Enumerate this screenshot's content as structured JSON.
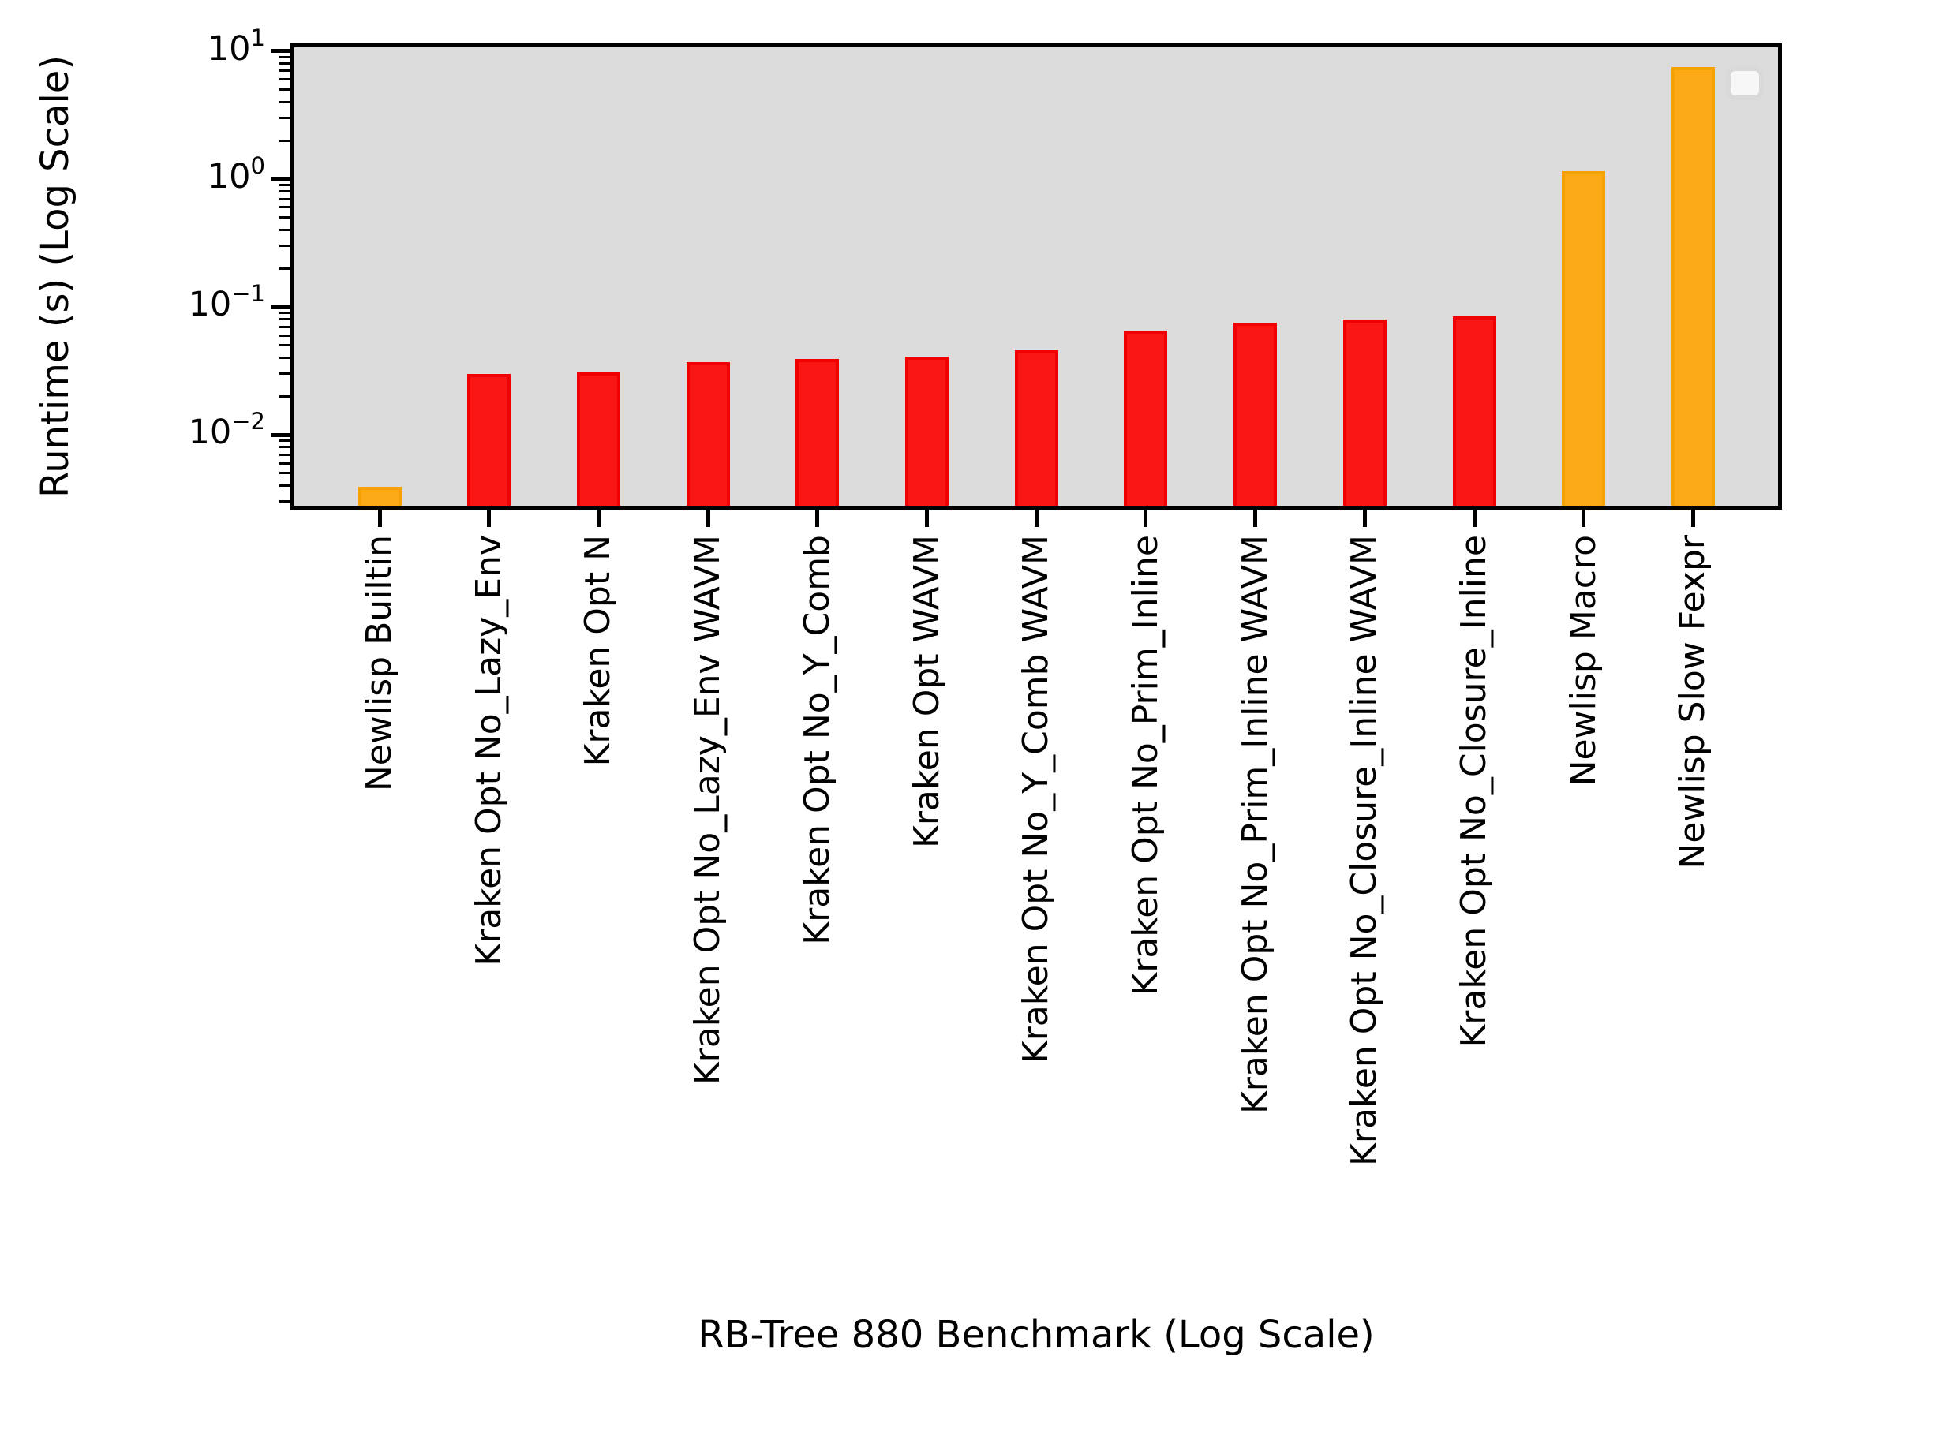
{
  "figure": {
    "y_axis": {
      "label": "Runtime (s) (Log Scale)",
      "major_ticks": [
        {
          "value": 10,
          "base": "10",
          "exp": "1"
        },
        {
          "value": 1,
          "base": "10",
          "exp": "0"
        },
        {
          "value": 0.1,
          "base": "10",
          "exp": "−1"
        },
        {
          "value": 0.01,
          "base": "10",
          "exp": "−2"
        }
      ]
    },
    "x_axis": {
      "label": "RB-Tree 880 Benchmark (Log Scale)"
    },
    "legend": {
      "present": true,
      "entries": []
    }
  },
  "chart_data": {
    "type": "bar",
    "title": "",
    "xlabel": "RB-Tree 880 Benchmark (Log Scale)",
    "ylabel": "Runtime (s) (Log Scale)",
    "yscale": "log",
    "ylim": [
      0.0026,
      11.5
    ],
    "grid": false,
    "legend_position": "upper right (empty box)",
    "categories": [
      "Newlisp Builtin",
      "Kraken Opt No_Lazy_Env",
      "Kraken Opt N",
      "Kraken Opt No_Lazy_Env WAVM",
      "Kraken Opt No_Y_Comb",
      "Kraken Opt WAVM",
      "Kraken Opt No_Y_Comb WAVM",
      "Kraken Opt No_Prim_Inline",
      "Kraken Opt No_Prim_Inline WAVM",
      "Kraken Opt No_Closure_Inline WAVM",
      "Kraken Opt No_Closure_Inline",
      "Newlisp Macro",
      "Newlisp Slow Fexpr"
    ],
    "values": [
      0.0039,
      0.03,
      0.031,
      0.037,
      0.039,
      0.041,
      0.046,
      0.065,
      0.075,
      0.08,
      0.084,
      1.15,
      7.5
    ],
    "series_colors": [
      "orange",
      "red",
      "red",
      "red",
      "red",
      "red",
      "red",
      "red",
      "red",
      "red",
      "red",
      "orange",
      "orange"
    ]
  },
  "colors": {
    "figure_bg": "#ffffff",
    "plot_bg": "#dcdcdc",
    "spine": "#000000",
    "red_face": "#fb1616",
    "red_edge": "#f00000",
    "orange_face": "#fbaa16",
    "orange_edge": "#f5a005",
    "legend_bg": "#f7f7f7",
    "legend_border": "#d9d9d9",
    "text": "#000000"
  }
}
